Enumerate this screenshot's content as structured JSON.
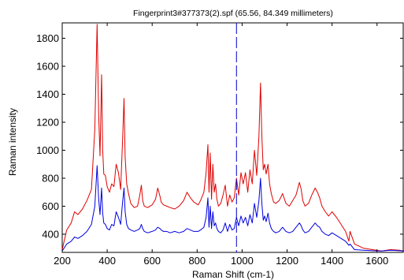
{
  "chart_data": {
    "type": "line",
    "title": "Fingerprint3#377373(2).spf (65.56, 84.349 millimeters)",
    "xlabel": "Raman Shift (cm-1)",
    "ylabel": "Raman intensity",
    "xlim": [
      200,
      1720
    ],
    "ylim": [
      270,
      1910
    ],
    "xticks": [
      200,
      400,
      600,
      800,
      1000,
      1200,
      1400,
      1600
    ],
    "yticks": [
      400,
      600,
      800,
      1000,
      1200,
      1400,
      1600,
      1800
    ],
    "grid": false,
    "legend": "none",
    "marker_x": 975,
    "marker_color": "#0000cc",
    "series": [
      {
        "color": "#e00000",
        "x": [
          200,
          220,
          240,
          255,
          270,
          290,
          310,
          330,
          345,
          355,
          362,
          368,
          375,
          380,
          385,
          392,
          400,
          410,
          420,
          430,
          440,
          450,
          460,
          468,
          475,
          480,
          487,
          495,
          505,
          520,
          535,
          545,
          552,
          558,
          565,
          580,
          600,
          615,
          625,
          635,
          640,
          650,
          665,
          680,
          700,
          720,
          740,
          755,
          770,
          785,
          795,
          805,
          815,
          830,
          840,
          848,
          853,
          858,
          864,
          870,
          876,
          882,
          888,
          895,
          905,
          915,
          925,
          935,
          945,
          955,
          965,
          975,
          985,
          995,
          1005,
          1015,
          1025,
          1035,
          1045,
          1055,
          1065,
          1075,
          1082,
          1088,
          1094,
          1100,
          1107,
          1115,
          1122,
          1130,
          1140,
          1150,
          1165,
          1180,
          1195,
          1210,
          1225,
          1240,
          1255,
          1263,
          1270,
          1280,
          1295,
          1310,
          1325,
          1335,
          1345,
          1355,
          1370,
          1385,
          1400,
          1420,
          1440,
          1460,
          1475,
          1480,
          1500,
          1540,
          1580,
          1620,
          1660,
          1700,
          1720
        ],
        "y": [
          290,
          430,
          480,
          560,
          540,
          580,
          640,
          720,
          1150,
          1900,
          1250,
          960,
          1540,
          1000,
          830,
          820,
          740,
          700,
          760,
          740,
          900,
          840,
          720,
          1050,
          1370,
          950,
          760,
          690,
          620,
          590,
          600,
          680,
          750,
          640,
          600,
          590,
          610,
          650,
          730,
          670,
          630,
          610,
          600,
          590,
          580,
          600,
          640,
          700,
          660,
          630,
          620,
          610,
          640,
          700,
          840,
          1040,
          700,
          980,
          650,
          900,
          700,
          760,
          650,
          600,
          620,
          680,
          750,
          600,
          680,
          630,
          660,
          800,
          680,
          840,
          760,
          840,
          700,
          860,
          760,
          1000,
          820,
          1100,
          1480,
          1100,
          860,
          900,
          830,
          900,
          760,
          690,
          630,
          620,
          640,
          690,
          620,
          600,
          640,
          680,
          770,
          720,
          640,
          600,
          620,
          680,
          730,
          700,
          660,
          600,
          560,
          530,
          560,
          520,
          470,
          420,
          350,
          420,
          330,
          300,
          290,
          280,
          290,
          285,
          280
        ]
      },
      {
        "color": "#0000e0",
        "x": [
          200,
          220,
          240,
          255,
          270,
          290,
          310,
          330,
          345,
          355,
          362,
          368,
          375,
          380,
          385,
          392,
          400,
          410,
          420,
          430,
          440,
          450,
          460,
          468,
          475,
          480,
          487,
          495,
          505,
          520,
          535,
          545,
          552,
          558,
          565,
          580,
          600,
          615,
          625,
          635,
          640,
          650,
          665,
          680,
          700,
          720,
          740,
          755,
          770,
          785,
          795,
          805,
          815,
          830,
          840,
          848,
          853,
          858,
          864,
          870,
          876,
          882,
          888,
          895,
          905,
          915,
          925,
          935,
          945,
          955,
          965,
          975,
          985,
          995,
          1005,
          1015,
          1025,
          1035,
          1045,
          1055,
          1065,
          1075,
          1082,
          1088,
          1094,
          1100,
          1107,
          1115,
          1122,
          1130,
          1140,
          1150,
          1165,
          1180,
          1195,
          1210,
          1225,
          1240,
          1255,
          1263,
          1270,
          1280,
          1295,
          1310,
          1325,
          1335,
          1345,
          1355,
          1370,
          1385,
          1400,
          1420,
          1440,
          1460,
          1475,
          1480,
          1500,
          1540,
          1580,
          1620,
          1660,
          1700,
          1720
        ],
        "y": [
          280,
          330,
          350,
          380,
          370,
          390,
          420,
          470,
          600,
          890,
          650,
          540,
          730,
          550,
          480,
          470,
          440,
          430,
          470,
          460,
          560,
          520,
          470,
          620,
          730,
          560,
          470,
          440,
          430,
          420,
          430,
          440,
          470,
          440,
          420,
          410,
          420,
          430,
          450,
          440,
          430,
          420,
          420,
          410,
          420,
          410,
          420,
          440,
          430,
          420,
          420,
          420,
          430,
          450,
          520,
          660,
          450,
          600,
          440,
          560,
          460,
          480,
          440,
          420,
          410,
          430,
          480,
          420,
          470,
          430,
          440,
          520,
          460,
          530,
          480,
          520,
          460,
          540,
          480,
          620,
          520,
          640,
          800,
          620,
          500,
          530,
          490,
          550,
          480,
          440,
          420,
          410,
          420,
          450,
          420,
          410,
          420,
          450,
          480,
          460,
          430,
          410,
          420,
          450,
          480,
          460,
          450,
          420,
          400,
          390,
          410,
          390,
          370,
          350,
          320,
          330,
          290,
          285,
          282,
          280,
          285,
          282,
          280
        ]
      }
    ]
  }
}
